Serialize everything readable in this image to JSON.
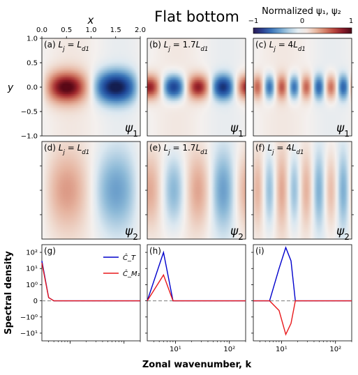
{
  "figure": {
    "title": "Flat bottom",
    "colorbar": {
      "label": "Normalized ψ₁, ψ₂",
      "ticks": [
        "−1",
        "0",
        "1"
      ],
      "colors": [
        "#2a1b54",
        "#2c3f8f",
        "#3b73b8",
        "#6fa3cf",
        "#b1cfe2",
        "#e6eef2",
        "#f3e6e0",
        "#e8b9a2",
        "#d5826a",
        "#b9473e",
        "#8a1c2a",
        "#4a0a18"
      ]
    },
    "top_axis": {
      "label": "x",
      "ticks": [
        "0.0",
        "0.5",
        "1.0",
        "1.5",
        "2.0"
      ]
    },
    "y_axis": {
      "label": "y",
      "ticks": [
        "1.0",
        "0.5",
        "0.0",
        "−0.5",
        "−1.0"
      ]
    },
    "spectral_y_label": "Spectral density",
    "spectral_x_label": "Zonal wavenumber, k",
    "spectral_y_ticks": [
      "10²",
      "10¹",
      "10⁰",
      "0",
      "−10⁰",
      "−10¹"
    ],
    "spectral_x_ticks": [
      "10¹",
      "10²"
    ],
    "legend": {
      "ct": "Ĉ_T",
      "cm": "Ĉ_M₁"
    },
    "series_colors": {
      "ct": "#0000cc",
      "cm": "#e8191c"
    }
  },
  "chart_data": [
    {
      "type": "heatmap",
      "panel": "(a)",
      "label": "(a) L_j = L_d1",
      "field": "ψ₁",
      "waves_per_domain": 1,
      "peak_amplitude": 1.0,
      "x_range": [
        0,
        2
      ],
      "y_range": [
        -1,
        1
      ]
    },
    {
      "type": "heatmap",
      "panel": "(b)",
      "label": "(b) L_j = 1.7L_d1",
      "field": "ψ₁",
      "waves_per_domain": 2,
      "peak_amplitude": 0.85,
      "x_range": [
        0,
        2
      ],
      "y_range": [
        -1,
        1
      ]
    },
    {
      "type": "heatmap",
      "panel": "(c)",
      "label": "(c) L_j = 4L_d1",
      "field": "ψ₁",
      "waves_per_domain": 4,
      "peak_amplitude": 0.6,
      "x_range": [
        0,
        2
      ],
      "y_range": [
        -1,
        1
      ]
    },
    {
      "type": "heatmap",
      "panel": "(d)",
      "label": "(d) L_j = L_d1",
      "field": "ψ₂",
      "waves_per_domain": 1,
      "peak_amplitude": 0.35,
      "x_range": [
        0,
        2
      ],
      "y_range": [
        -1,
        1
      ]
    },
    {
      "type": "heatmap",
      "panel": "(e)",
      "label": "(e) L_j = 1.7L_d1",
      "field": "ψ₂",
      "waves_per_domain": 2,
      "peak_amplitude": 0.35,
      "x_range": [
        0,
        2
      ],
      "y_range": [
        -1,
        1
      ]
    },
    {
      "type": "heatmap",
      "panel": "(f)",
      "label": "(f) L_j = 4L_d1",
      "field": "ψ₂",
      "waves_per_domain": 4,
      "peak_amplitude": 0.3,
      "x_range": [
        0,
        2
      ],
      "y_range": [
        -1,
        1
      ]
    },
    {
      "type": "line",
      "panel": "(g)",
      "label": "(g)",
      "xlim": [
        3,
        200
      ],
      "x_scale": "log",
      "y_scale": "symlog",
      "series": [
        {
          "name": "Ĉ_T",
          "x": [
            3,
            4,
            5,
            6,
            200
          ],
          "y": [
            30,
            0.2,
            0,
            0,
            0
          ]
        },
        {
          "name": "Ĉ_M₁",
          "x": [
            3,
            4,
            5,
            6,
            200
          ],
          "y": [
            22,
            0.2,
            0,
            0,
            0
          ]
        }
      ]
    },
    {
      "type": "line",
      "panel": "(h)",
      "label": "(h)",
      "xlim": [
        3,
        200
      ],
      "x_scale": "log",
      "y_scale": "symlog",
      "series": [
        {
          "x": [
            3,
            6,
            9,
            200
          ],
          "y": [
            0,
            100,
            0,
            0
          ]
        },
        {
          "x": [
            3,
            6,
            9,
            200
          ],
          "y": [
            0,
            4,
            0,
            0
          ]
        }
      ]
    },
    {
      "type": "line",
      "panel": "(i)",
      "label": "(i)",
      "xlim": [
        3,
        200
      ],
      "x_scale": "log",
      "y_scale": "symlog",
      "series": [
        {
          "x": [
            3,
            6,
            9,
            12,
            15,
            18,
            200
          ],
          "y": [
            0,
            0,
            10,
            200,
            30,
            0,
            0
          ]
        },
        {
          "x": [
            3,
            6,
            9,
            12,
            15,
            18,
            200
          ],
          "y": [
            0,
            0,
            -0.6,
            -12,
            -2.5,
            0,
            0
          ]
        }
      ]
    }
  ]
}
